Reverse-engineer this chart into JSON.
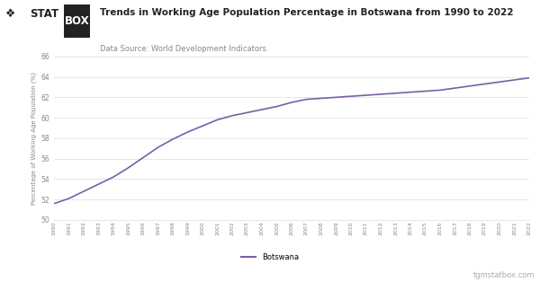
{
  "title": "Trends in Working Age Population Percentage in Botswana from 1990 to 2022",
  "subtitle": "Data Source: World Development Indicators.",
  "ylabel": "Percentage of Working Age Population (%)",
  "watermark": "tgmstatbox.com",
  "legend_label": "Botswana",
  "line_color": "#7B5EA7",
  "background_color": "#ffffff",
  "grid_color": "#dddddd",
  "years": [
    1990,
    1991,
    1992,
    1993,
    1994,
    1995,
    1996,
    1997,
    1998,
    1999,
    2000,
    2001,
    2002,
    2003,
    2004,
    2005,
    2006,
    2007,
    2008,
    2009,
    2010,
    2011,
    2012,
    2013,
    2014,
    2015,
    2016,
    2017,
    2018,
    2019,
    2020,
    2021,
    2022
  ],
  "values": [
    51.6,
    52.1,
    52.8,
    53.5,
    54.2,
    55.1,
    56.1,
    57.1,
    57.9,
    58.6,
    59.2,
    59.8,
    60.2,
    60.5,
    60.8,
    61.1,
    61.5,
    61.8,
    61.9,
    62.0,
    62.1,
    62.2,
    62.3,
    62.4,
    62.5,
    62.6,
    62.7,
    62.9,
    63.1,
    63.3,
    63.5,
    63.7,
    63.9
  ],
  "ylim": [
    50,
    66
  ],
  "yticks": [
    50,
    52,
    54,
    56,
    58,
    60,
    62,
    64,
    66
  ],
  "logo_diamond_color": "#222222",
  "logo_stat_color": "#222222",
  "logo_box_bg": "#222222",
  "logo_box_fg": "#ffffff"
}
